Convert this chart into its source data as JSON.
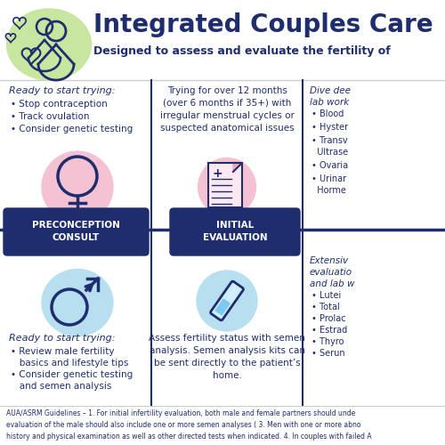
{
  "title": "Integrated Couples Care",
  "subtitle": "Designed to assess and evaluate the fertility of",
  "bg_color": "#ffffff",
  "navy": "#1e2d6e",
  "green_blob": "#c8e6a0",
  "light_pink": "#f5c2d4",
  "light_blue": "#b8dff0",
  "box_color": "#1e2d6e",
  "female_header": "Ready to start trying:",
  "female_bullets": [
    "Stop contraception",
    "Track ovulation",
    "Consider genetic testing"
  ],
  "male_header": "Ready to start trying:",
  "male_bullets": [
    "Review male fertility\nbasics and lifestyle tips",
    "Consider genetic testing\nand semen analysis"
  ],
  "center_top_text": "Trying for over 12 months\n(over 6 months if 35+) with\nirregular menstrual cycles or\nsuspected anatomical issues",
  "center_bottom_text": "Assess fertility status with semen\nanalysis. Semen analysis kits can\nbe sent directly to the patient’s\nhome.",
  "box1_label": "PRECONCEPTION\nCONSULT",
  "box2_label": "INITIAL\nEVALUATION",
  "right_top_intro": "Dive dee\nlab work",
  "right_top_bullets": [
    "Blood",
    "Hyster",
    "Transv\nUltrase",
    "Ovaria",
    "Urinar\nHorme"
  ],
  "right_bottom_intro": "Extensiv\nevaluatio\nand lab w",
  "right_bottom_bullets": [
    "Lutei",
    "Total",
    "Prolac",
    "Estrad",
    "Thyro",
    "Serun"
  ],
  "footer": "AUA/ASRM Guidelines – 1. For initial infertility evaluation, both male and female partners should unde\nevaluation of the male should also include one or more semen analyses ( 3. Men with one or more abno\nhistory and physical examination as well as other directed tests when indicated. 4. In couples with failed A"
}
